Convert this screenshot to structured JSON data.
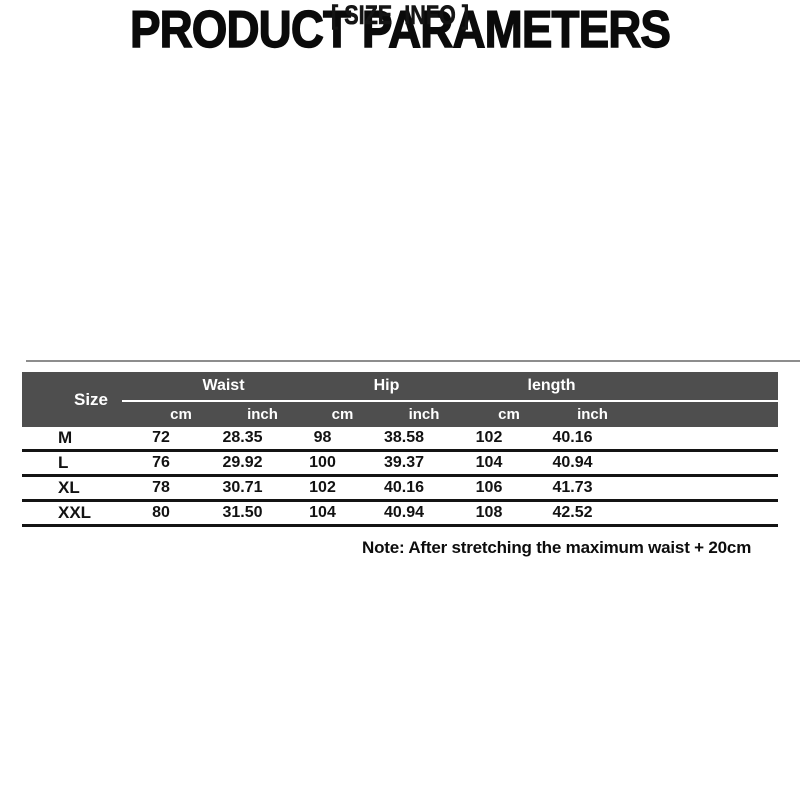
{
  "page": {
    "title": "PRODUCT PARAMETERS",
    "subtitle": "[ SIZE  INFO ]",
    "note": "Note: After stretching the maximum waist + 20cm"
  },
  "table": {
    "size_header": "Size",
    "groups": [
      {
        "label": "Waist"
      },
      {
        "label": "Hip"
      },
      {
        "label": "length"
      }
    ],
    "subheaders": [
      "cm",
      "inch",
      "cm",
      "inch",
      "cm",
      "inch"
    ],
    "rows": [
      {
        "size": "M",
        "values": [
          "72",
          "28.35",
          "98",
          "38.58",
          "102",
          "40.16"
        ]
      },
      {
        "size": "L",
        "values": [
          "76",
          "29.92",
          "100",
          "39.37",
          "104",
          "40.94"
        ]
      },
      {
        "size": "XL",
        "values": [
          "78",
          "30.71",
          "102",
          "40.16",
          "106",
          "41.73"
        ]
      },
      {
        "size": "XXL",
        "values": [
          "80",
          "31.50",
          "104",
          "40.94",
          "108",
          "42.52"
        ]
      }
    ]
  },
  "colors": {
    "header_background": "#4e4e4e",
    "header_text": "#ffffff",
    "row_divider": "#141414",
    "text": "#0a0a0a",
    "page_background": "#ffffff"
  }
}
